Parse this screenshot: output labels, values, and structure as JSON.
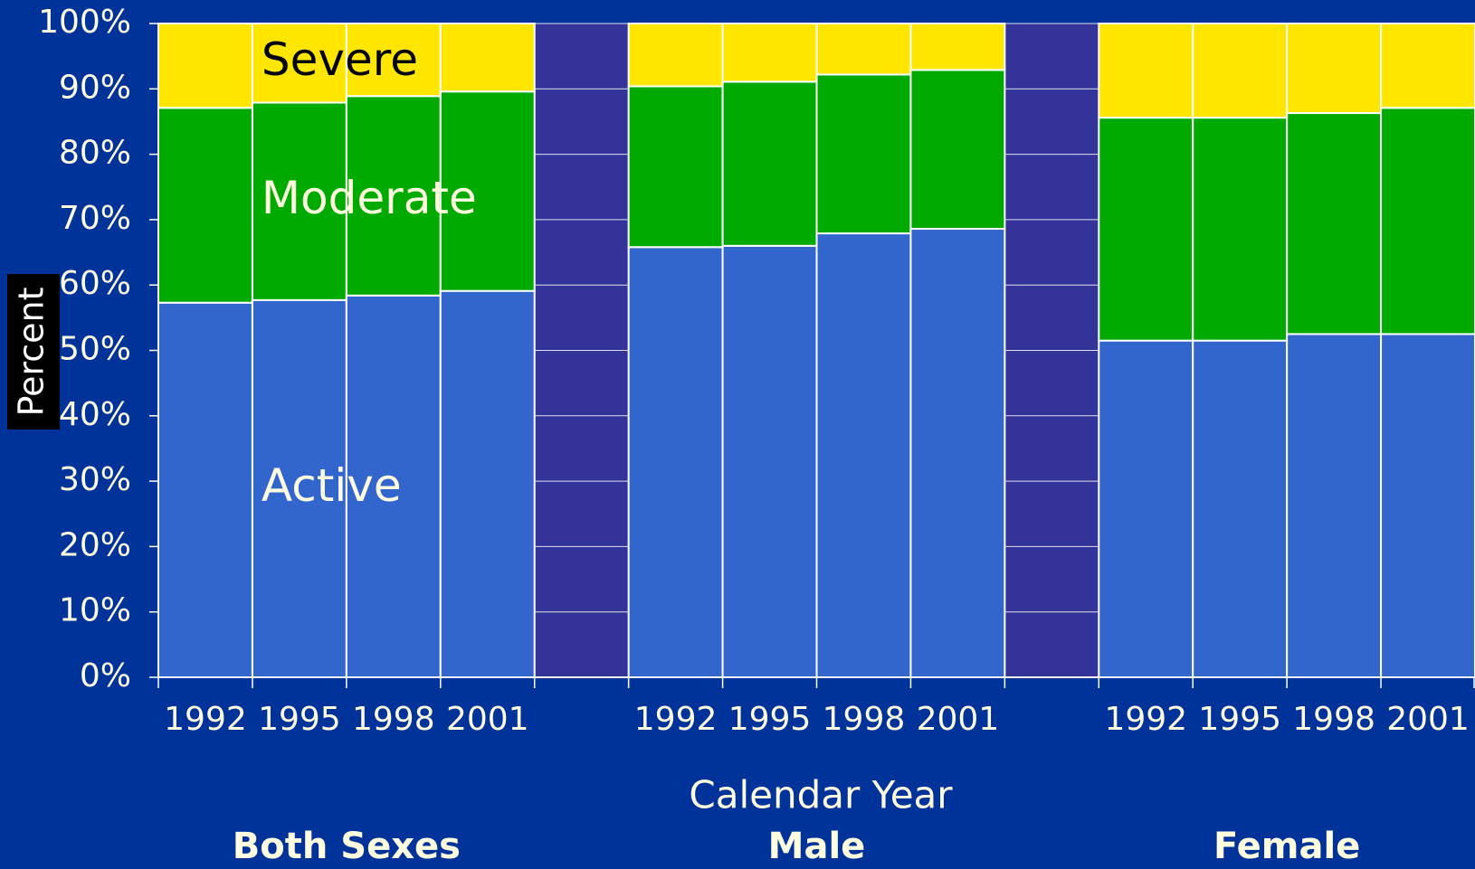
{
  "chart_data": {
    "type": "stacked-bar",
    "x_label": "Calendar Year",
    "y_label": "Percent",
    "categories": [
      "1992",
      "1995",
      "1998",
      "2001",
      null,
      "1992",
      "1995",
      "1998",
      "2001",
      null,
      "1992",
      "1995",
      "1998",
      "2001"
    ],
    "groups": [
      "Both Sexes",
      "Male",
      "Female"
    ],
    "series": [
      {
        "name": "Active",
        "color": "#3366cc",
        "values": [
          57.3,
          57.7,
          58.4,
          59.1,
          null,
          65.8,
          66.0,
          67.9,
          68.6,
          null,
          51.5,
          51.5,
          52.5,
          52.5
        ]
      },
      {
        "name": "Moderate",
        "color": "#00aa00",
        "values": [
          29.8,
          30.2,
          30.5,
          30.5,
          null,
          24.6,
          25.1,
          24.3,
          24.3,
          null,
          34.1,
          34.1,
          33.8,
          34.6
        ]
      },
      {
        "name": "Severe",
        "color": "#ffe600",
        "values": [
          12.9,
          12.1,
          11.1,
          10.4,
          null,
          9.6,
          8.9,
          7.8,
          7.1,
          null,
          14.4,
          14.4,
          13.7,
          12.9
        ]
      }
    ],
    "ylim": [
      0,
      100
    ],
    "yticks": [
      {
        "value": 0,
        "label": "0%"
      },
      {
        "value": 10,
        "label": "10%"
      },
      {
        "value": 20,
        "label": "20%"
      },
      {
        "value": 30,
        "label": "30%"
      },
      {
        "value": 40,
        "label": "40%"
      },
      {
        "value": 50,
        "label": "50%"
      },
      {
        "value": 60,
        "label": "60%"
      },
      {
        "value": 70,
        "label": "70%"
      },
      {
        "value": 80,
        "label": "80%"
      },
      {
        "value": 90,
        "label": "90%"
      },
      {
        "value": 100,
        "label": "100%"
      }
    ],
    "grid": true
  }
}
